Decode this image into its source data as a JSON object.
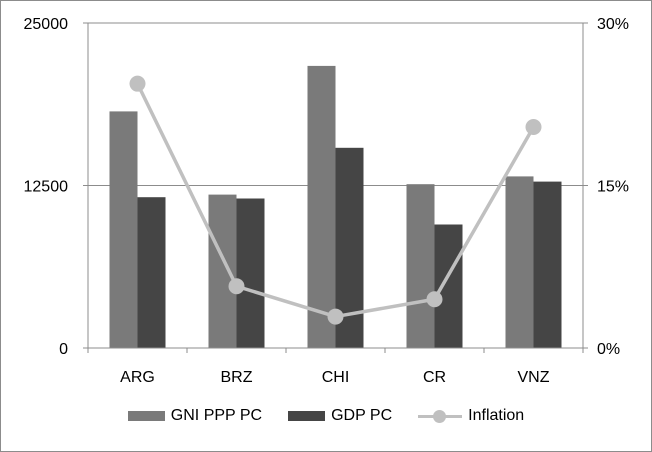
{
  "chart_data": {
    "type": "bar",
    "title": "",
    "xlabel": "",
    "ylabel": "",
    "categories": [
      "ARG",
      "BRZ",
      "CHI",
      "CR",
      "VNZ"
    ],
    "ylim": [
      0,
      25000
    ],
    "y2lim": [
      0,
      30
    ],
    "yticks": [
      "0",
      "12500",
      "25000"
    ],
    "y2ticks": [
      "0%",
      "15%",
      "30%"
    ],
    "grid": true,
    "legend_position": "bottom",
    "series": [
      {
        "name": "GNI PPP PC",
        "type": "bar",
        "axis": "left",
        "color": "#7a7a7a",
        "values": [
          18200,
          11800,
          21700,
          12600,
          13200
        ]
      },
      {
        "name": "GDP PC",
        "type": "bar",
        "axis": "left",
        "color": "#454545",
        "values": [
          11600,
          11500,
          15400,
          9500,
          12800
        ]
      },
      {
        "name": "Inflation",
        "type": "line",
        "axis": "right",
        "unit": "%",
        "color": "#c0c0c0",
        "values": [
          24.4,
          5.7,
          2.9,
          4.5,
          20.4
        ]
      }
    ]
  }
}
